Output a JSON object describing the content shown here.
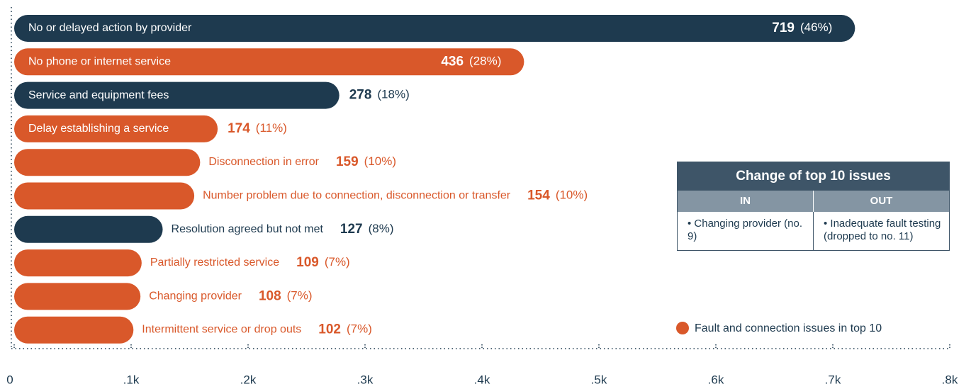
{
  "chart_data": {
    "type": "bar",
    "categories": [
      "No or delayed action by provider",
      "No phone or internet service",
      "Service and equipment fees",
      "Delay establishing a service",
      "Disconnection in error",
      "Number problem due to connection, disconnection or transfer",
      "Resolution agreed but not met",
      "Partially restricted service",
      "Changing provider",
      "Intermittent service or drop outs"
    ],
    "values": [
      719,
      436,
      278,
      174,
      159,
      154,
      127,
      109,
      108,
      102
    ],
    "percent_labels": [
      "(46%)",
      "(28%)",
      "(18%)",
      "(11%)",
      "(10%)",
      "(10%)",
      "(8%)",
      "(7%)",
      "(7%)",
      "(7%)"
    ],
    "colors": [
      "#1e3a4f",
      "#d9582a",
      "#1e3a4f",
      "#d9582a",
      "#d9582a",
      "#d9582a",
      "#1e3a4f",
      "#d9582a",
      "#d9582a",
      "#d9582a"
    ],
    "xlim": [
      0,
      800
    ],
    "xticks": [
      0,
      {
        "value": 100,
        "label": ".1k"
      },
      {
        "value": 200,
        "label": ".2k"
      },
      {
        "value": 300,
        "label": ".3k"
      },
      {
        "value": 400,
        "label": ".4k"
      },
      {
        "value": 500,
        "label": ".5k"
      },
      {
        "value": 600,
        "label": ".6k"
      },
      {
        "value": 700,
        "label": ".7k"
      },
      {
        "value": 800,
        "label": ".8k"
      }
    ],
    "legend": {
      "label": "Fault and connection issues in top 10",
      "color": "#d9582a"
    }
  },
  "table": {
    "title": "Change of top 10 issues",
    "headers": [
      "IN",
      "OUT"
    ],
    "rows": [
      [
        "• Changing provider (no. 9)",
        "• Inadequate fault testing (dropped to no. 11)"
      ]
    ]
  }
}
